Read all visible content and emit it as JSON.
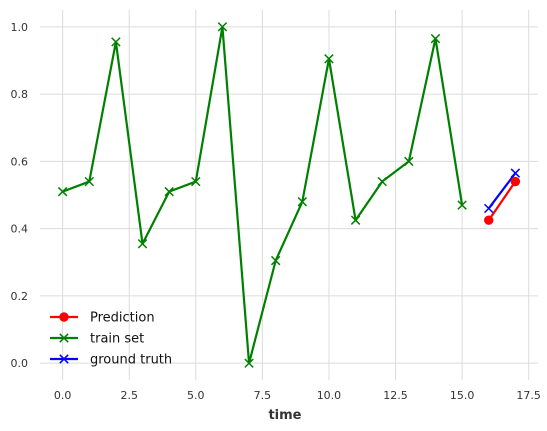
{
  "chart_data": {
    "type": "line",
    "xlabel": "time",
    "ylabel": "",
    "xlim": [
      -0.85,
      17.85
    ],
    "ylim": [
      -0.05,
      1.05
    ],
    "x_ticks": [
      0.0,
      2.5,
      5.0,
      7.5,
      10.0,
      12.5,
      15.0,
      17.5
    ],
    "x_tick_labels": [
      "0.0",
      "2.5",
      "5.0",
      "7.5",
      "10.0",
      "12.5",
      "15.0",
      "17.5"
    ],
    "y_ticks": [
      0.0,
      0.2,
      0.4,
      0.6,
      0.8,
      1.0
    ],
    "y_tick_labels": [
      "0.0",
      "0.2",
      "0.4",
      "0.6",
      "0.8",
      "1.0"
    ],
    "grid": true,
    "legend_position": "lower-left",
    "series": [
      {
        "name": "Prediction",
        "color": "#ff0000",
        "marker": "circle",
        "x": [
          16,
          17
        ],
        "y": [
          0.425,
          0.54
        ]
      },
      {
        "name": "train set",
        "color": "#008000",
        "marker": "x",
        "x": [
          0,
          1,
          2,
          3,
          4,
          5,
          6,
          7,
          8,
          9,
          10,
          11,
          12,
          13,
          14,
          15
        ],
        "y": [
          0.51,
          0.54,
          0.955,
          0.355,
          0.51,
          0.54,
          1.0,
          0.0,
          0.305,
          0.48,
          0.905,
          0.425,
          0.54,
          0.6,
          0.965,
          0.47
        ]
      },
      {
        "name": "ground truth",
        "color": "#0000ff",
        "marker": "x",
        "x": [
          16,
          17
        ],
        "y": [
          0.46,
          0.565
        ]
      }
    ]
  }
}
